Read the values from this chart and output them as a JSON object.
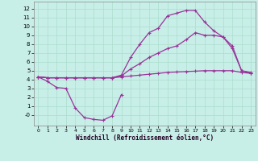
{
  "xlabel": "Windchill (Refroidissement éolien,°C)",
  "bg_color": "#c8eee8",
  "grid_color": "#aaddcc",
  "line_color": "#993399",
  "x_ticks": [
    0,
    1,
    2,
    3,
    4,
    5,
    6,
    7,
    8,
    9,
    10,
    11,
    12,
    13,
    14,
    15,
    16,
    17,
    18,
    19,
    20,
    21,
    22,
    23
  ],
  "y_ticks": [
    0,
    1,
    2,
    3,
    4,
    5,
    6,
    7,
    8,
    9,
    10,
    11,
    12
  ],
  "xlim": [
    -0.5,
    23.5
  ],
  "ylim": [
    -1.2,
    12.8
  ],
  "series": [
    {
      "x": [
        0,
        1,
        2,
        3,
        4,
        5,
        6,
        7,
        8,
        9,
        10,
        11,
        12,
        13,
        14,
        15,
        16,
        17,
        18,
        19,
        20,
        21,
        22,
        23
      ],
      "y": [
        4.3,
        4.2,
        4.2,
        4.2,
        4.2,
        4.2,
        4.2,
        4.2,
        4.2,
        4.3,
        4.4,
        4.5,
        4.6,
        4.7,
        4.8,
        4.85,
        4.9,
        4.95,
        5.0,
        5.0,
        5.0,
        5.0,
        4.8,
        4.7
      ]
    },
    {
      "x": [
        0,
        1,
        2,
        3,
        4,
        5,
        6,
        7,
        8,
        9,
        10,
        11,
        12,
        13,
        14,
        15,
        16,
        17,
        18,
        19,
        20,
        21,
        22,
        23
      ],
      "y": [
        4.3,
        4.2,
        4.2,
        4.2,
        4.2,
        4.2,
        4.2,
        4.2,
        4.2,
        4.4,
        5.2,
        5.8,
        6.5,
        7.0,
        7.5,
        7.8,
        8.5,
        9.3,
        9.0,
        9.0,
        8.8,
        7.5,
        5.0,
        4.7
      ]
    },
    {
      "x": [
        0,
        1,
        2,
        3,
        4,
        5,
        6,
        7,
        8,
        9,
        10,
        11,
        12,
        13,
        14,
        15,
        16,
        17,
        18,
        19,
        20,
        21,
        22,
        23
      ],
      "y": [
        4.3,
        4.2,
        4.2,
        4.2,
        4.2,
        4.2,
        4.2,
        4.2,
        4.2,
        4.5,
        6.5,
        8.0,
        9.3,
        9.8,
        11.2,
        11.5,
        11.8,
        11.8,
        10.5,
        9.5,
        8.8,
        7.8,
        5.0,
        4.8
      ]
    },
    {
      "x": [
        0,
        1,
        2,
        3,
        4,
        5,
        6,
        7,
        8,
        9
      ],
      "y": [
        4.3,
        3.8,
        3.1,
        3.0,
        0.8,
        -0.3,
        -0.5,
        -0.6,
        -0.1,
        2.3
      ]
    }
  ]
}
